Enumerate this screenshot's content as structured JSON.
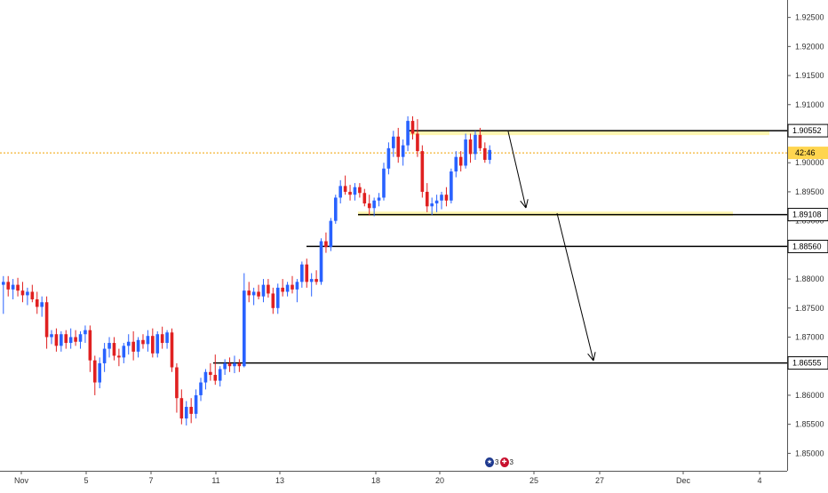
{
  "chart_data": {
    "type": "candlestick",
    "colors": {
      "up": "#2962ff",
      "down": "#e02020",
      "level": "#000000",
      "zone": "#fff59d",
      "current": "#f0a000",
      "tag_current": "#ffd54f"
    },
    "y_axis": {
      "range": [
        1.847,
        1.928
      ],
      "ticks": [
        "1.92500",
        "1.92000",
        "1.91500",
        "1.91000",
        "1.90500",
        "1.90000",
        "1.89500",
        "1.89000",
        "1.88500",
        "1.88000",
        "1.87500",
        "1.87000",
        "1.86500",
        "1.86000",
        "1.85500",
        "1.85000"
      ]
    },
    "x_axis": {
      "ticks": [
        "Nov",
        "5",
        "7",
        "11",
        "13",
        "18",
        "20",
        "25",
        "27",
        "Dec",
        "4"
      ]
    },
    "levels": [
      {
        "label": "1.90552",
        "value": 1.90552
      },
      {
        "label": "1.89108",
        "value": 1.89108
      },
      {
        "label": "1.88560",
        "value": 1.8856
      },
      {
        "label": "1.86555",
        "value": 1.86555
      }
    ],
    "zones": [
      {
        "from": 1.9048,
        "to": 1.90552
      },
      {
        "from": 1.89108,
        "to": 1.8916
      }
    ],
    "current_price": {
      "value": 1.9017,
      "label": "42:46"
    },
    "candles": [
      [
        1.879,
        1.8805,
        1.874,
        1.8795
      ],
      [
        1.8795,
        1.8805,
        1.877,
        1.8782
      ],
      [
        1.8782,
        1.88,
        1.8765,
        1.879
      ],
      [
        1.879,
        1.8802,
        1.877,
        1.878
      ],
      [
        1.878,
        1.8795,
        1.876,
        1.8772
      ],
      [
        1.8772,
        1.8785,
        1.8755,
        1.8778
      ],
      [
        1.8778,
        1.879,
        1.876,
        1.8765
      ],
      [
        1.8765,
        1.8778,
        1.874,
        1.8752
      ],
      [
        1.8752,
        1.877,
        1.8735,
        1.876
      ],
      [
        1.876,
        1.877,
        1.868,
        1.87
      ],
      [
        1.87,
        1.8712,
        1.8688,
        1.8705
      ],
      [
        1.8705,
        1.8715,
        1.8675,
        1.8685
      ],
      [
        1.8685,
        1.871,
        1.8675,
        1.8705
      ],
      [
        1.8705,
        1.8712,
        1.868,
        1.869
      ],
      [
        1.869,
        1.8715,
        1.868,
        1.87
      ],
      [
        1.87,
        1.8712,
        1.8685,
        1.8692
      ],
      [
        1.8692,
        1.871,
        1.868,
        1.8705
      ],
      [
        1.8705,
        1.872,
        1.869,
        1.8712
      ],
      [
        1.8712,
        1.872,
        1.864,
        1.866
      ],
      [
        1.866,
        1.8668,
        1.86,
        1.8622
      ],
      [
        1.8622,
        1.8665,
        1.8612,
        1.8655
      ],
      [
        1.8655,
        1.869,
        1.864,
        1.868
      ],
      [
        1.868,
        1.87,
        1.8665,
        1.869
      ],
      [
        1.869,
        1.87,
        1.866,
        1.8668
      ],
      [
        1.8668,
        1.868,
        1.865,
        1.8665
      ],
      [
        1.8665,
        1.869,
        1.8655,
        1.8685
      ],
      [
        1.8685,
        1.8705,
        1.867,
        1.8692
      ],
      [
        1.8692,
        1.871,
        1.866,
        1.8675
      ],
      [
        1.8675,
        1.87,
        1.8665,
        1.8695
      ],
      [
        1.8695,
        1.8705,
        1.868,
        1.8688
      ],
      [
        1.8688,
        1.8712,
        1.8675,
        1.8702
      ],
      [
        1.8702,
        1.8715,
        1.8665,
        1.8672
      ],
      [
        1.8672,
        1.871,
        1.8665,
        1.8705
      ],
      [
        1.8705,
        1.8718,
        1.868,
        1.869
      ],
      [
        1.869,
        1.8712,
        1.868,
        1.8708
      ],
      [
        1.8708,
        1.8715,
        1.864,
        1.8648
      ],
      [
        1.8648,
        1.8655,
        1.857,
        1.8595
      ],
      [
        1.8595,
        1.861,
        1.855,
        1.856
      ],
      [
        1.856,
        1.859,
        1.8548,
        1.858
      ],
      [
        1.858,
        1.8595,
        1.8552,
        1.8568
      ],
      [
        1.8568,
        1.861,
        1.856,
        1.86
      ],
      [
        1.86,
        1.863,
        1.859,
        1.8622
      ],
      [
        1.8622,
        1.8645,
        1.861,
        1.864
      ],
      [
        1.864,
        1.8655,
        1.8625,
        1.8635
      ],
      [
        1.8635,
        1.867,
        1.8618,
        1.8625
      ],
      [
        1.8625,
        1.865,
        1.8615,
        1.8645
      ],
      [
        1.8645,
        1.8662,
        1.8635,
        1.8655
      ],
      [
        1.8655,
        1.8665,
        1.864,
        1.865
      ],
      [
        1.865,
        1.8668,
        1.8638,
        1.8655
      ],
      [
        1.8655,
        1.8662,
        1.864,
        1.865
      ],
      [
        1.865,
        1.881,
        1.8648,
        1.878
      ],
      [
        1.878,
        1.8795,
        1.876,
        1.8772
      ],
      [
        1.8772,
        1.8785,
        1.8755,
        1.8778
      ],
      [
        1.8778,
        1.879,
        1.8765,
        1.877
      ],
      [
        1.877,
        1.88,
        1.876,
        1.879
      ],
      [
        1.879,
        1.88,
        1.8768,
        1.8775
      ],
      [
        1.8775,
        1.8785,
        1.874,
        1.875
      ],
      [
        1.875,
        1.8792,
        1.874,
        1.8785
      ],
      [
        1.8785,
        1.88,
        1.877,
        1.8778
      ],
      [
        1.8778,
        1.8795,
        1.877,
        1.879
      ],
      [
        1.879,
        1.8805,
        1.8775,
        1.8782
      ],
      [
        1.8782,
        1.88,
        1.876,
        1.8795
      ],
      [
        1.8795,
        1.883,
        1.8785,
        1.8825
      ],
      [
        1.8825,
        1.8835,
        1.8785,
        1.8795
      ],
      [
        1.8795,
        1.881,
        1.877,
        1.88
      ],
      [
        1.88,
        1.8815,
        1.879,
        1.8795
      ],
      [
        1.8795,
        1.887,
        1.879,
        1.8865
      ],
      [
        1.8865,
        1.888,
        1.8845,
        1.8855
      ],
      [
        1.8855,
        1.8905,
        1.8848,
        1.89
      ],
      [
        1.89,
        1.8945,
        1.8895,
        1.894
      ],
      [
        1.894,
        1.897,
        1.893,
        1.896
      ],
      [
        1.896,
        1.8978,
        1.8945,
        1.895
      ],
      [
        1.895,
        1.8962,
        1.8935,
        1.8945
      ],
      [
        1.8945,
        1.8965,
        1.8935,
        1.8958
      ],
      [
        1.8958,
        1.8965,
        1.894,
        1.8948
      ],
      [
        1.8948,
        1.8955,
        1.8925,
        1.893
      ],
      [
        1.893,
        1.8945,
        1.891,
        1.8922
      ],
      [
        1.8922,
        1.894,
        1.8908,
        1.8935
      ],
      [
        1.8935,
        1.8948,
        1.8925,
        1.894
      ],
      [
        1.894,
        1.9,
        1.8935,
        1.899
      ],
      [
        1.899,
        1.9035,
        1.898,
        1.9025
      ],
      [
        1.9025,
        1.9055,
        1.901,
        1.9045
      ],
      [
        1.9045,
        1.906,
        1.9,
        1.901
      ],
      [
        1.901,
        1.904,
        1.8995,
        1.903
      ],
      [
        1.903,
        1.908,
        1.902,
        1.9072
      ],
      [
        1.9072,
        1.908,
        1.904,
        1.905
      ],
      [
        1.905,
        1.9075,
        1.901,
        1.902
      ],
      [
        1.902,
        1.903,
        1.894,
        1.895
      ],
      [
        1.895,
        1.8965,
        1.8915,
        1.8925
      ],
      [
        1.8925,
        1.894,
        1.891,
        1.893
      ],
      [
        1.893,
        1.8945,
        1.8915,
        1.8935
      ],
      [
        1.8935,
        1.895,
        1.892,
        1.8945
      ],
      [
        1.8945,
        1.8958,
        1.8925,
        1.8935
      ],
      [
        1.8935,
        1.899,
        1.893,
        1.8985
      ],
      [
        1.8985,
        1.902,
        1.8975,
        1.901
      ],
      [
        1.901,
        1.902,
        1.8985,
        1.8995
      ],
      [
        1.8995,
        1.905,
        1.899,
        1.904
      ],
      [
        1.904,
        1.905,
        1.9,
        1.9015
      ],
      [
        1.9015,
        1.9055,
        1.9005,
        1.9048
      ],
      [
        1.9048,
        1.906,
        1.902,
        1.9025
      ],
      [
        1.9025,
        1.9035,
        1.9,
        1.9005
      ],
      [
        1.9005,
        1.903,
        1.8998,
        1.9022
      ]
    ]
  },
  "event_badge": {
    "count_au": "3",
    "count_gb": "3"
  }
}
